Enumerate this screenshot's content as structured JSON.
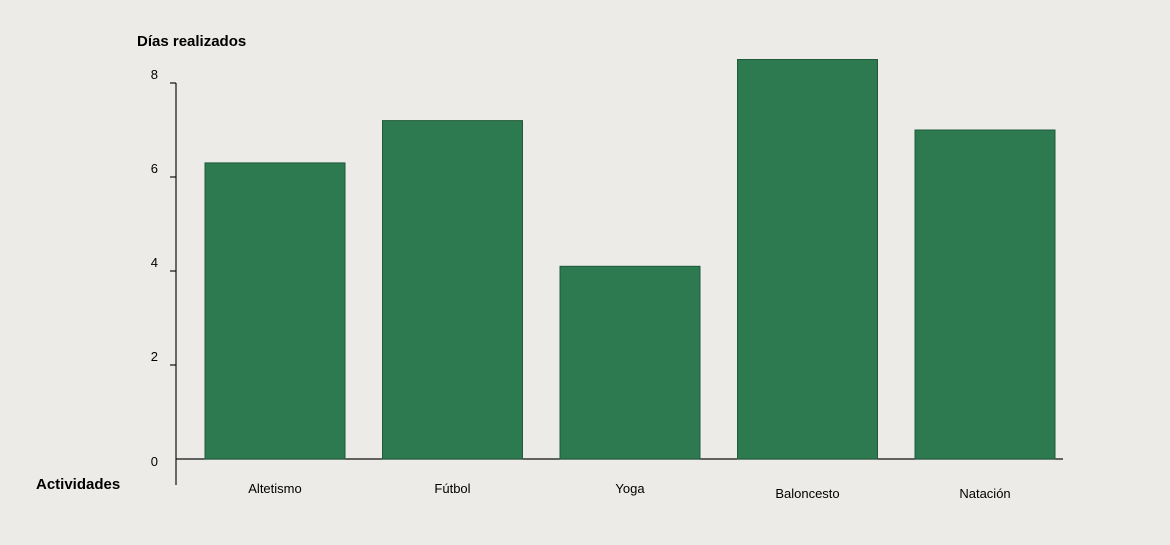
{
  "chart_data": {
    "type": "bar",
    "title": "",
    "ylabel": "Días realizados",
    "xlabel": "Actividades",
    "categories": [
      "Altetismo",
      "Fútbol",
      "Yoga",
      "Baloncesto",
      "Natación"
    ],
    "values": [
      6.3,
      7.2,
      4.1,
      8.5,
      7.0
    ],
    "ylim": [
      0,
      8.5
    ],
    "yticks": [
      0,
      2,
      4,
      6,
      8
    ],
    "bar_color": "#2d7a50",
    "grid": false,
    "legend": "none"
  }
}
